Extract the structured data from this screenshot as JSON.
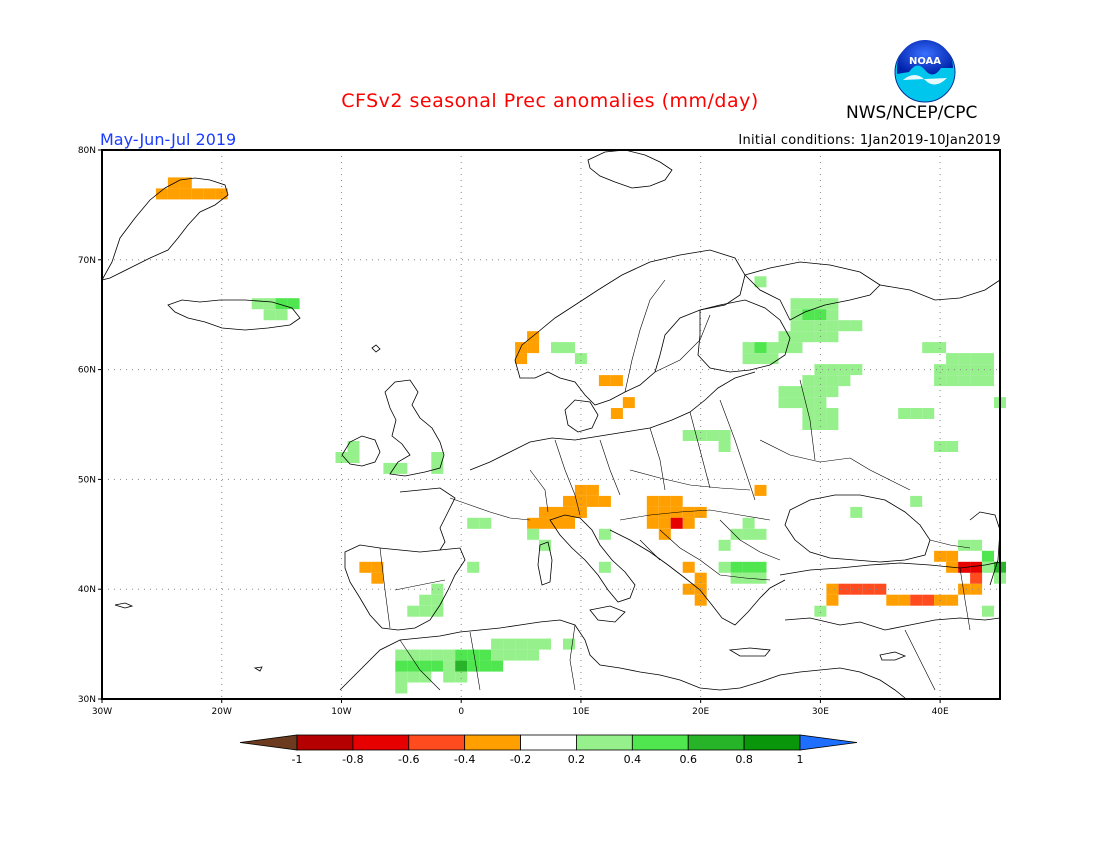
{
  "header": {
    "title": "CFSv2 seasonal Prec anomalies (mm/day)",
    "organization": "NWS/NCEP/CPC",
    "period": "May-Jun-Jul 2019",
    "initial_conditions": "Initial conditions: 1Jan2019-10Jan2019",
    "logo_text": "NOAA"
  },
  "map": {
    "lon_range": [
      -30,
      45
    ],
    "lat_range": [
      30,
      80
    ],
    "lat_labels": [
      "80N",
      "70N",
      "60N",
      "50N",
      "40N",
      "30N"
    ],
    "lon_labels": [
      "30W",
      "20W",
      "10W",
      "0",
      "10E",
      "20E",
      "30E",
      "40E"
    ],
    "colorbar": {
      "ticks": [
        "-1",
        "-0.8",
        "-0.6",
        "-0.4",
        "-0.2",
        "0.2",
        "0.4",
        "0.6",
        "0.8",
        "1"
      ],
      "colors": [
        "#6b3a1f",
        "#b40000",
        "#e60000",
        "#ff4b1e",
        "#ffa000",
        "#ffffff",
        "#96f08c",
        "#50e650",
        "#28b428",
        "#0a960a",
        "#1e6eff"
      ]
    },
    "anomaly_cells": [
      {
        "lon": -24,
        "lat": 77,
        "v": -0.3
      },
      {
        "lon": -23,
        "lat": 77,
        "v": -0.3
      },
      {
        "lon": -25,
        "lat": 76,
        "v": -0.3
      },
      {
        "lon": -24,
        "lat": 76,
        "v": -0.3
      },
      {
        "lon": -23,
        "lat": 76,
        "v": -0.3
      },
      {
        "lon": -22,
        "lat": 76,
        "v": -0.3
      },
      {
        "lon": -21,
        "lat": 76,
        "v": -0.3
      },
      {
        "lon": -20,
        "lat": 76,
        "v": -0.3
      },
      {
        "lon": -17,
        "lat": 66,
        "v": 0.3
      },
      {
        "lon": -16,
        "lat": 66,
        "v": 0.3
      },
      {
        "lon": -15,
        "lat": 66,
        "v": 0.5
      },
      {
        "lon": -14,
        "lat": 66,
        "v": 0.5
      },
      {
        "lon": -16,
        "lat": 65,
        "v": 0.3
      },
      {
        "lon": -15,
        "lat": 65,
        "v": 0.3
      },
      {
        "lon": -9,
        "lat": 53,
        "v": 0.3
      },
      {
        "lon": -9,
        "lat": 52,
        "v": 0.3
      },
      {
        "lon": -10,
        "lat": 52,
        "v": 0.3
      },
      {
        "lon": -2,
        "lat": 52,
        "v": 0.3
      },
      {
        "lon": -2,
        "lat": 51,
        "v": 0.3
      },
      {
        "lon": -6,
        "lat": 51,
        "v": 0.3
      },
      {
        "lon": -5,
        "lat": 51,
        "v": 0.3
      },
      {
        "lon": 6,
        "lat": 63,
        "v": -0.3
      },
      {
        "lon": 5,
        "lat": 62,
        "v": -0.3
      },
      {
        "lon": 6,
        "lat": 62,
        "v": -0.3
      },
      {
        "lon": 5,
        "lat": 61,
        "v": -0.3
      },
      {
        "lon": 8,
        "lat": 62,
        "v": 0.3
      },
      {
        "lon": 9,
        "lat": 62,
        "v": 0.3
      },
      {
        "lon": 10,
        "lat": 61,
        "v": 0.3
      },
      {
        "lon": 12,
        "lat": 59,
        "v": -0.3
      },
      {
        "lon": 13,
        "lat": 59,
        "v": -0.3
      },
      {
        "lon": 14,
        "lat": 57,
        "v": -0.3
      },
      {
        "lon": 13,
        "lat": 56,
        "v": -0.3
      },
      {
        "lon": 25,
        "lat": 68,
        "v": 0.3
      },
      {
        "lon": 28,
        "lat": 66,
        "v": 0.3
      },
      {
        "lon": 29,
        "lat": 66,
        "v": 0.3
      },
      {
        "lon": 30,
        "lat": 66,
        "v": 0.3
      },
      {
        "lon": 31,
        "lat": 66,
        "v": 0.3
      },
      {
        "lon": 28,
        "lat": 65,
        "v": 0.3
      },
      {
        "lon": 29,
        "lat": 65,
        "v": 0.5
      },
      {
        "lon": 30,
        "lat": 65,
        "v": 0.5
      },
      {
        "lon": 31,
        "lat": 65,
        "v": 0.3
      },
      {
        "lon": 28,
        "lat": 64,
        "v": 0.3
      },
      {
        "lon": 29,
        "lat": 64,
        "v": 0.3
      },
      {
        "lon": 30,
        "lat": 64,
        "v": 0.3
      },
      {
        "lon": 31,
        "lat": 64,
        "v": 0.3
      },
      {
        "lon": 32,
        "lat": 64,
        "v": 0.3
      },
      {
        "lon": 33,
        "lat": 64,
        "v": 0.3
      },
      {
        "lon": 27,
        "lat": 63,
        "v": 0.3
      },
      {
        "lon": 28,
        "lat": 63,
        "v": 0.3
      },
      {
        "lon": 29,
        "lat": 63,
        "v": 0.3
      },
      {
        "lon": 30,
        "lat": 63,
        "v": 0.3
      },
      {
        "lon": 31,
        "lat": 63,
        "v": 0.3
      },
      {
        "lon": 24,
        "lat": 62,
        "v": 0.3
      },
      {
        "lon": 25,
        "lat": 62,
        "v": 0.5
      },
      {
        "lon": 26,
        "lat": 62,
        "v": 0.3
      },
      {
        "lon": 27,
        "lat": 62,
        "v": 0.3
      },
      {
        "lon": 28,
        "lat": 62,
        "v": 0.3
      },
      {
        "lon": 24,
        "lat": 61,
        "v": 0.3
      },
      {
        "lon": 25,
        "lat": 61,
        "v": 0.3
      },
      {
        "lon": 26,
        "lat": 61,
        "v": 0.3
      },
      {
        "lon": 30,
        "lat": 60,
        "v": 0.3
      },
      {
        "lon": 31,
        "lat": 60,
        "v": 0.3
      },
      {
        "lon": 32,
        "lat": 60,
        "v": 0.3
      },
      {
        "lon": 33,
        "lat": 60,
        "v": 0.3
      },
      {
        "lon": 29,
        "lat": 59,
        "v": 0.3
      },
      {
        "lon": 30,
        "lat": 59,
        "v": 0.3
      },
      {
        "lon": 31,
        "lat": 59,
        "v": 0.3
      },
      {
        "lon": 32,
        "lat": 59,
        "v": 0.3
      },
      {
        "lon": 27,
        "lat": 58,
        "v": 0.3
      },
      {
        "lon": 28,
        "lat": 58,
        "v": 0.3
      },
      {
        "lon": 29,
        "lat": 58,
        "v": 0.3
      },
      {
        "lon": 30,
        "lat": 58,
        "v": 0.3
      },
      {
        "lon": 31,
        "lat": 58,
        "v": 0.3
      },
      {
        "lon": 27,
        "lat": 57,
        "v": 0.3
      },
      {
        "lon": 28,
        "lat": 57,
        "v": 0.3
      },
      {
        "lon": 29,
        "lat": 57,
        "v": 0.3
      },
      {
        "lon": 30,
        "lat": 57,
        "v": 0.3
      },
      {
        "lon": 29,
        "lat": 56,
        "v": 0.3
      },
      {
        "lon": 30,
        "lat": 56,
        "v": 0.3
      },
      {
        "lon": 31,
        "lat": 56,
        "v": 0.3
      },
      {
        "lon": 29,
        "lat": 55,
        "v": 0.3
      },
      {
        "lon": 30,
        "lat": 55,
        "v": 0.3
      },
      {
        "lon": 31,
        "lat": 55,
        "v": 0.3
      },
      {
        "lon": 21,
        "lat": 54,
        "v": 0.3
      },
      {
        "lon": 22,
        "lat": 54,
        "v": 0.3
      },
      {
        "lon": 20,
        "lat": 54,
        "v": 0.3
      },
      {
        "lon": 19,
        "lat": 54,
        "v": 0.3
      },
      {
        "lon": 22,
        "lat": 53,
        "v": 0.3
      },
      {
        "lon": 39,
        "lat": 62,
        "v": 0.3
      },
      {
        "lon": 40,
        "lat": 62,
        "v": 0.3
      },
      {
        "lon": 41,
        "lat": 61,
        "v": 0.3
      },
      {
        "lon": 42,
        "lat": 61,
        "v": 0.3
      },
      {
        "lon": 43,
        "lat": 61,
        "v": 0.3
      },
      {
        "lon": 44,
        "lat": 61,
        "v": 0.3
      },
      {
        "lon": 40,
        "lat": 60,
        "v": 0.3
      },
      {
        "lon": 41,
        "lat": 60,
        "v": 0.3
      },
      {
        "lon": 42,
        "lat": 60,
        "v": 0.3
      },
      {
        "lon": 43,
        "lat": 60,
        "v": 0.3
      },
      {
        "lon": 44,
        "lat": 60,
        "v": 0.3
      },
      {
        "lon": 40,
        "lat": 59,
        "v": 0.3
      },
      {
        "lon": 41,
        "lat": 59,
        "v": 0.3
      },
      {
        "lon": 42,
        "lat": 59,
        "v": 0.3
      },
      {
        "lon": 43,
        "lat": 59,
        "v": 0.3
      },
      {
        "lon": 44,
        "lat": 59,
        "v": 0.3
      },
      {
        "lon": 37,
        "lat": 56,
        "v": 0.3
      },
      {
        "lon": 38,
        "lat": 56,
        "v": 0.3
      },
      {
        "lon": 39,
        "lat": 56,
        "v": 0.3
      },
      {
        "lon": 45,
        "lat": 57,
        "v": 0.3
      },
      {
        "lon": 40,
        "lat": 53,
        "v": 0.3
      },
      {
        "lon": 41,
        "lat": 53,
        "v": 0.3
      },
      {
        "lon": 25,
        "lat": 49,
        "v": -0.3
      },
      {
        "lon": 33,
        "lat": 47,
        "v": 0.3
      },
      {
        "lon": 38,
        "lat": 48,
        "v": 0.3
      },
      {
        "lon": 10,
        "lat": 49,
        "v": -0.3
      },
      {
        "lon": 11,
        "lat": 49,
        "v": -0.3
      },
      {
        "lon": 9,
        "lat": 48,
        "v": -0.3
      },
      {
        "lon": 10,
        "lat": 48,
        "v": -0.3
      },
      {
        "lon": 11,
        "lat": 48,
        "v": -0.3
      },
      {
        "lon": 12,
        "lat": 48,
        "v": -0.3
      },
      {
        "lon": 7,
        "lat": 47,
        "v": -0.3
      },
      {
        "lon": 8,
        "lat": 47,
        "v": -0.3
      },
      {
        "lon": 9,
        "lat": 47,
        "v": -0.3
      },
      {
        "lon": 10,
        "lat": 47,
        "v": -0.3
      },
      {
        "lon": 6,
        "lat": 46,
        "v": -0.3
      },
      {
        "lon": 7,
        "lat": 46,
        "v": -0.3
      },
      {
        "lon": 8,
        "lat": 46,
        "v": -0.3
      },
      {
        "lon": 9,
        "lat": 46,
        "v": -0.3
      },
      {
        "lon": 16,
        "lat": 48,
        "v": -0.3
      },
      {
        "lon": 17,
        "lat": 48,
        "v": -0.3
      },
      {
        "lon": 18,
        "lat": 48,
        "v": -0.3
      },
      {
        "lon": 16,
        "lat": 47,
        "v": -0.3
      },
      {
        "lon": 17,
        "lat": 47,
        "v": -0.3
      },
      {
        "lon": 18,
        "lat": 47,
        "v": -0.3
      },
      {
        "lon": 19,
        "lat": 47,
        "v": -0.3
      },
      {
        "lon": 16,
        "lat": 46,
        "v": -0.3
      },
      {
        "lon": 17,
        "lat": 46,
        "v": -0.3
      },
      {
        "lon": 19,
        "lat": 46,
        "v": -0.3
      },
      {
        "lon": 20,
        "lat": 47,
        "v": -0.3
      },
      {
        "lon": 18,
        "lat": 46,
        "v": -0.7
      },
      {
        "lon": 17,
        "lat": 45,
        "v": -0.3
      },
      {
        "lon": 19,
        "lat": 42,
        "v": -0.3
      },
      {
        "lon": 20,
        "lat": 41,
        "v": -0.3
      },
      {
        "lon": 19,
        "lat": 40,
        "v": -0.3
      },
      {
        "lon": 20,
        "lat": 40,
        "v": -0.3
      },
      {
        "lon": 20,
        "lat": 39,
        "v": -0.3
      },
      {
        "lon": 6,
        "lat": 45,
        "v": 0.3
      },
      {
        "lon": 7,
        "lat": 44,
        "v": 0.3
      },
      {
        "lon": 12,
        "lat": 45,
        "v": 0.3
      },
      {
        "lon": 1,
        "lat": 46,
        "v": 0.3
      },
      {
        "lon": 2,
        "lat": 46,
        "v": 0.3
      },
      {
        "lon": 23,
        "lat": 45,
        "v": 0.3
      },
      {
        "lon": 24,
        "lat": 46,
        "v": 0.3
      },
      {
        "lon": 24,
        "lat": 45,
        "v": 0.3
      },
      {
        "lon": 25,
        "lat": 45,
        "v": 0.3
      },
      {
        "lon": 22,
        "lat": 44,
        "v": 0.3
      },
      {
        "lon": 23,
        "lat": 42,
        "v": 0.5
      },
      {
        "lon": 24,
        "lat": 42,
        "v": 0.5
      },
      {
        "lon": 25,
        "lat": 42,
        "v": 0.5
      },
      {
        "lon": 22,
        "lat": 42,
        "v": 0.3
      },
      {
        "lon": 23,
        "lat": 41,
        "v": 0.3
      },
      {
        "lon": 24,
        "lat": 41,
        "v": 0.3
      },
      {
        "lon": 25,
        "lat": 41,
        "v": 0.3
      },
      {
        "lon": 12,
        "lat": 42,
        "v": 0.3
      },
      {
        "lon": 1,
        "lat": 42,
        "v": 0.3
      },
      {
        "lon": -8,
        "lat": 42,
        "v": -0.3
      },
      {
        "lon": -7,
        "lat": 42,
        "v": -0.3
      },
      {
        "lon": -7,
        "lat": 41,
        "v": -0.3
      },
      {
        "lon": -2,
        "lat": 40,
        "v": 0.3
      },
      {
        "lon": -3,
        "lat": 39,
        "v": 0.3
      },
      {
        "lon": -2,
        "lat": 39,
        "v": 0.3
      },
      {
        "lon": -4,
        "lat": 38,
        "v": 0.3
      },
      {
        "lon": -3,
        "lat": 38,
        "v": 0.3
      },
      {
        "lon": -2,
        "lat": 38,
        "v": 0.3
      },
      {
        "lon": 3,
        "lat": 35,
        "v": 0.3
      },
      {
        "lon": 4,
        "lat": 35,
        "v": 0.3
      },
      {
        "lon": 5,
        "lat": 35,
        "v": 0.3
      },
      {
        "lon": 6,
        "lat": 35,
        "v": 0.3
      },
      {
        "lon": 7,
        "lat": 35,
        "v": 0.3
      },
      {
        "lon": 9,
        "lat": 35,
        "v": 0.3
      },
      {
        "lon": -5,
        "lat": 34,
        "v": 0.3
      },
      {
        "lon": -4,
        "lat": 34,
        "v": 0.3
      },
      {
        "lon": -3,
        "lat": 34,
        "v": 0.3
      },
      {
        "lon": -2,
        "lat": 34,
        "v": 0.3
      },
      {
        "lon": -1,
        "lat": 34,
        "v": 0.3
      },
      {
        "lon": 0,
        "lat": 34,
        "v": 0.5
      },
      {
        "lon": 1,
        "lat": 34,
        "v": 0.5
      },
      {
        "lon": 2,
        "lat": 34,
        "v": 0.5
      },
      {
        "lon": 3,
        "lat": 34,
        "v": 0.3
      },
      {
        "lon": 4,
        "lat": 34,
        "v": 0.3
      },
      {
        "lon": 5,
        "lat": 34,
        "v": 0.3
      },
      {
        "lon": 6,
        "lat": 34,
        "v": 0.3
      },
      {
        "lon": -5,
        "lat": 33,
        "v": 0.5
      },
      {
        "lon": -4,
        "lat": 33,
        "v": 0.5
      },
      {
        "lon": -3,
        "lat": 33,
        "v": 0.5
      },
      {
        "lon": -2,
        "lat": 33,
        "v": 0.5
      },
      {
        "lon": -1,
        "lat": 33,
        "v": 0.3
      },
      {
        "lon": 0,
        "lat": 33,
        "v": 0.7
      },
      {
        "lon": 1,
        "lat": 33,
        "v": 0.5
      },
      {
        "lon": 2,
        "lat": 33,
        "v": 0.5
      },
      {
        "lon": 3,
        "lat": 33,
        "v": 0.5
      },
      {
        "lon": -5,
        "lat": 32,
        "v": 0.3
      },
      {
        "lon": -4,
        "lat": 32,
        "v": 0.3
      },
      {
        "lon": -3,
        "lat": 32,
        "v": 0.3
      },
      {
        "lon": -1,
        "lat": 32,
        "v": 0.3
      },
      {
        "lon": 0,
        "lat": 32,
        "v": 0.3
      },
      {
        "lon": -5,
        "lat": 31,
        "v": 0.3
      },
      {
        "lon": 32,
        "lat": 40,
        "v": -0.5
      },
      {
        "lon": 33,
        "lat": 40,
        "v": -0.5
      },
      {
        "lon": 34,
        "lat": 40,
        "v": -0.5
      },
      {
        "lon": 35,
        "lat": 40,
        "v": -0.5
      },
      {
        "lon": 31,
        "lat": 40,
        "v": -0.3
      },
      {
        "lon": 31,
        "lat": 39,
        "v": -0.3
      },
      {
        "lon": 36,
        "lat": 39,
        "v": -0.3
      },
      {
        "lon": 37,
        "lat": 39,
        "v": -0.3
      },
      {
        "lon": 38,
        "lat": 39,
        "v": -0.5
      },
      {
        "lon": 39,
        "lat": 39,
        "v": -0.5
      },
      {
        "lon": 40,
        "lat": 39,
        "v": -0.3
      },
      {
        "lon": 41,
        "lat": 39,
        "v": -0.3
      },
      {
        "lon": 42,
        "lat": 40,
        "v": -0.3
      },
      {
        "lon": 43,
        "lat": 40,
        "v": -0.3
      },
      {
        "lon": 43,
        "lat": 41,
        "v": -0.5
      },
      {
        "lon": 42,
        "lat": 42,
        "v": -0.7
      },
      {
        "lon": 43,
        "lat": 42,
        "v": -0.7
      },
      {
        "lon": 41,
        "lat": 42,
        "v": -0.3
      },
      {
        "lon": 40,
        "lat": 43,
        "v": -0.3
      },
      {
        "lon": 41,
        "lat": 43,
        "v": -0.3
      },
      {
        "lon": 44,
        "lat": 43,
        "v": 0.5
      },
      {
        "lon": 45,
        "lat": 42,
        "v": 0.7
      },
      {
        "lon": 44,
        "lat": 42,
        "v": 0.3
      },
      {
        "lon": 45,
        "lat": 41,
        "v": 0.3
      },
      {
        "lon": 42,
        "lat": 44,
        "v": 0.3
      },
      {
        "lon": 43,
        "lat": 44,
        "v": 0.3
      },
      {
        "lon": 30,
        "lat": 38,
        "v": 0.3
      },
      {
        "lon": 44,
        "lat": 38,
        "v": 0.3
      }
    ]
  }
}
